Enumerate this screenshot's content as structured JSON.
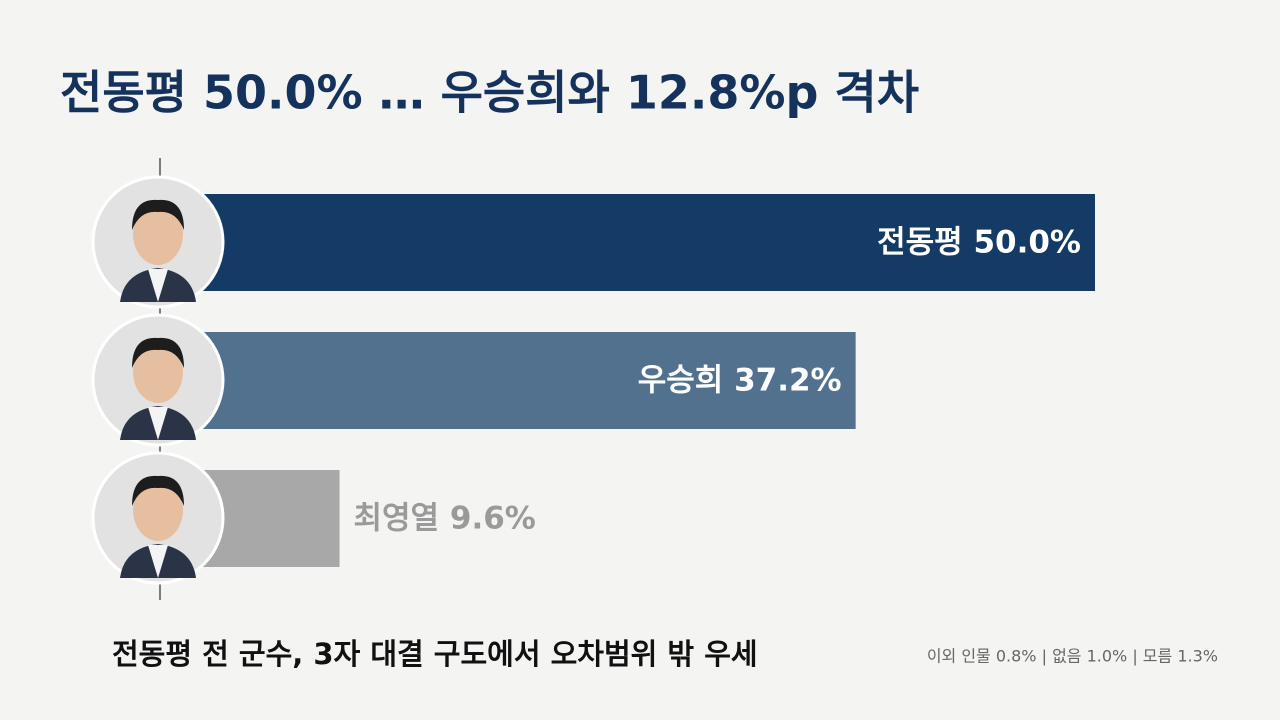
{
  "chart_data": {
    "type": "bar",
    "orientation": "horizontal",
    "title": "전동평 50.0% … 우승희와 12.8%p 격차",
    "subtitle": "전동평 전 군수, 3자 대결 구도에서 오차범위 밖 우세",
    "note": "이외 인물 0.8% | 없음 1.0% | 모름 1.3%",
    "categories": [
      "전동평",
      "우승희",
      "최영열"
    ],
    "values": [
      50.0,
      37.2,
      9.6
    ],
    "value_labels": [
      "전동평 50.0%",
      "우승희 37.2%",
      "최영열 9.6%"
    ],
    "colors": [
      "#143a66",
      "#52718f",
      "#a8a8a8"
    ]
  }
}
